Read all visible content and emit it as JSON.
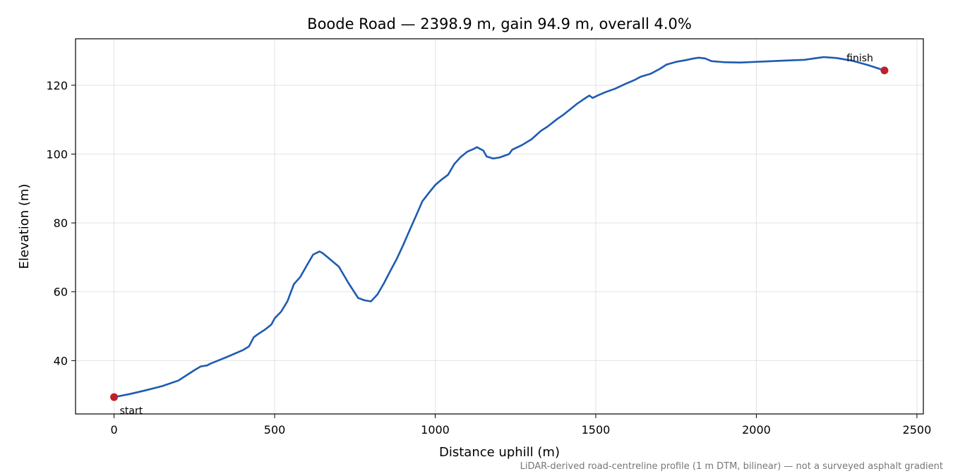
{
  "chart_data": {
    "type": "line",
    "title": "Boode Road — 2398.9 m, gain 94.9 m, overall 4.0%",
    "xlabel": "Distance uphill (m)",
    "ylabel": "Elevation (m)",
    "xlim": [
      -120,
      2520
    ],
    "ylim": [
      24.5,
      133.5
    ],
    "xticks": [
      0,
      500,
      1000,
      1500,
      2000,
      2500
    ],
    "yticks": [
      40,
      60,
      80,
      100,
      120
    ],
    "grid": true,
    "series": [
      {
        "color": "#1f5bb0",
        "points": [
          [
            0,
            29.4
          ],
          [
            50,
            30.3
          ],
          [
            100,
            31.4
          ],
          [
            150,
            32.6
          ],
          [
            200,
            34.2
          ],
          [
            250,
            37.2
          ],
          [
            270,
            38.3
          ],
          [
            290,
            38.6
          ],
          [
            300,
            39.1
          ],
          [
            350,
            41.0
          ],
          [
            400,
            43.0
          ],
          [
            420,
            44.1
          ],
          [
            435,
            46.8
          ],
          [
            450,
            47.8
          ],
          [
            470,
            49.0
          ],
          [
            490,
            50.5
          ],
          [
            500,
            52.3
          ],
          [
            520,
            54.2
          ],
          [
            540,
            57.3
          ],
          [
            560,
            62.2
          ],
          [
            580,
            64.3
          ],
          [
            600,
            67.6
          ],
          [
            620,
            70.8
          ],
          [
            640,
            71.7
          ],
          [
            650,
            71.2
          ],
          [
            700,
            67.3
          ],
          [
            730,
            62.5
          ],
          [
            760,
            58.2
          ],
          [
            780,
            57.5
          ],
          [
            800,
            57.2
          ],
          [
            820,
            59.2
          ],
          [
            840,
            62.4
          ],
          [
            860,
            66.0
          ],
          [
            880,
            69.5
          ],
          [
            900,
            73.5
          ],
          [
            920,
            77.8
          ],
          [
            940,
            82.0
          ],
          [
            960,
            86.3
          ],
          [
            980,
            88.7
          ],
          [
            1000,
            91.0
          ],
          [
            1020,
            92.6
          ],
          [
            1040,
            94.0
          ],
          [
            1060,
            97.2
          ],
          [
            1080,
            99.2
          ],
          [
            1100,
            100.7
          ],
          [
            1120,
            101.5
          ],
          [
            1130,
            102.0
          ],
          [
            1150,
            101.0
          ],
          [
            1160,
            99.3
          ],
          [
            1180,
            98.7
          ],
          [
            1200,
            99.0
          ],
          [
            1230,
            100.0
          ],
          [
            1240,
            101.3
          ],
          [
            1270,
            102.6
          ],
          [
            1300,
            104.3
          ],
          [
            1330,
            106.8
          ],
          [
            1350,
            108.0
          ],
          [
            1380,
            110.2
          ],
          [
            1400,
            111.5
          ],
          [
            1420,
            113.0
          ],
          [
            1440,
            114.5
          ],
          [
            1460,
            115.8
          ],
          [
            1480,
            117.0
          ],
          [
            1490,
            116.3
          ],
          [
            1510,
            117.2
          ],
          [
            1530,
            118.0
          ],
          [
            1560,
            119.0
          ],
          [
            1590,
            120.3
          ],
          [
            1620,
            121.5
          ],
          [
            1640,
            122.5
          ],
          [
            1670,
            123.3
          ],
          [
            1700,
            124.8
          ],
          [
            1720,
            126.0
          ],
          [
            1750,
            126.8
          ],
          [
            1780,
            127.3
          ],
          [
            1800,
            127.7
          ],
          [
            1820,
            128.0
          ],
          [
            1840,
            127.8
          ],
          [
            1860,
            127.0
          ],
          [
            1900,
            126.7
          ],
          [
            1950,
            126.6
          ],
          [
            2000,
            126.8
          ],
          [
            2050,
            127.0
          ],
          [
            2100,
            127.2
          ],
          [
            2150,
            127.4
          ],
          [
            2180,
            127.8
          ],
          [
            2210,
            128.2
          ],
          [
            2250,
            127.9
          ],
          [
            2300,
            127.1
          ],
          [
            2350,
            125.8
          ],
          [
            2398.9,
            124.3
          ]
        ]
      }
    ],
    "markers": [
      {
        "x": 0,
        "y": 29.4,
        "label": "start",
        "color": "#c0202a"
      },
      {
        "x": 2398.9,
        "y": 124.3,
        "label": "finish",
        "color": "#c0202a"
      }
    ]
  },
  "caption": "LiDAR-derived road-centreline profile (1 m DTM, bilinear) — not a surveyed asphalt gradient"
}
